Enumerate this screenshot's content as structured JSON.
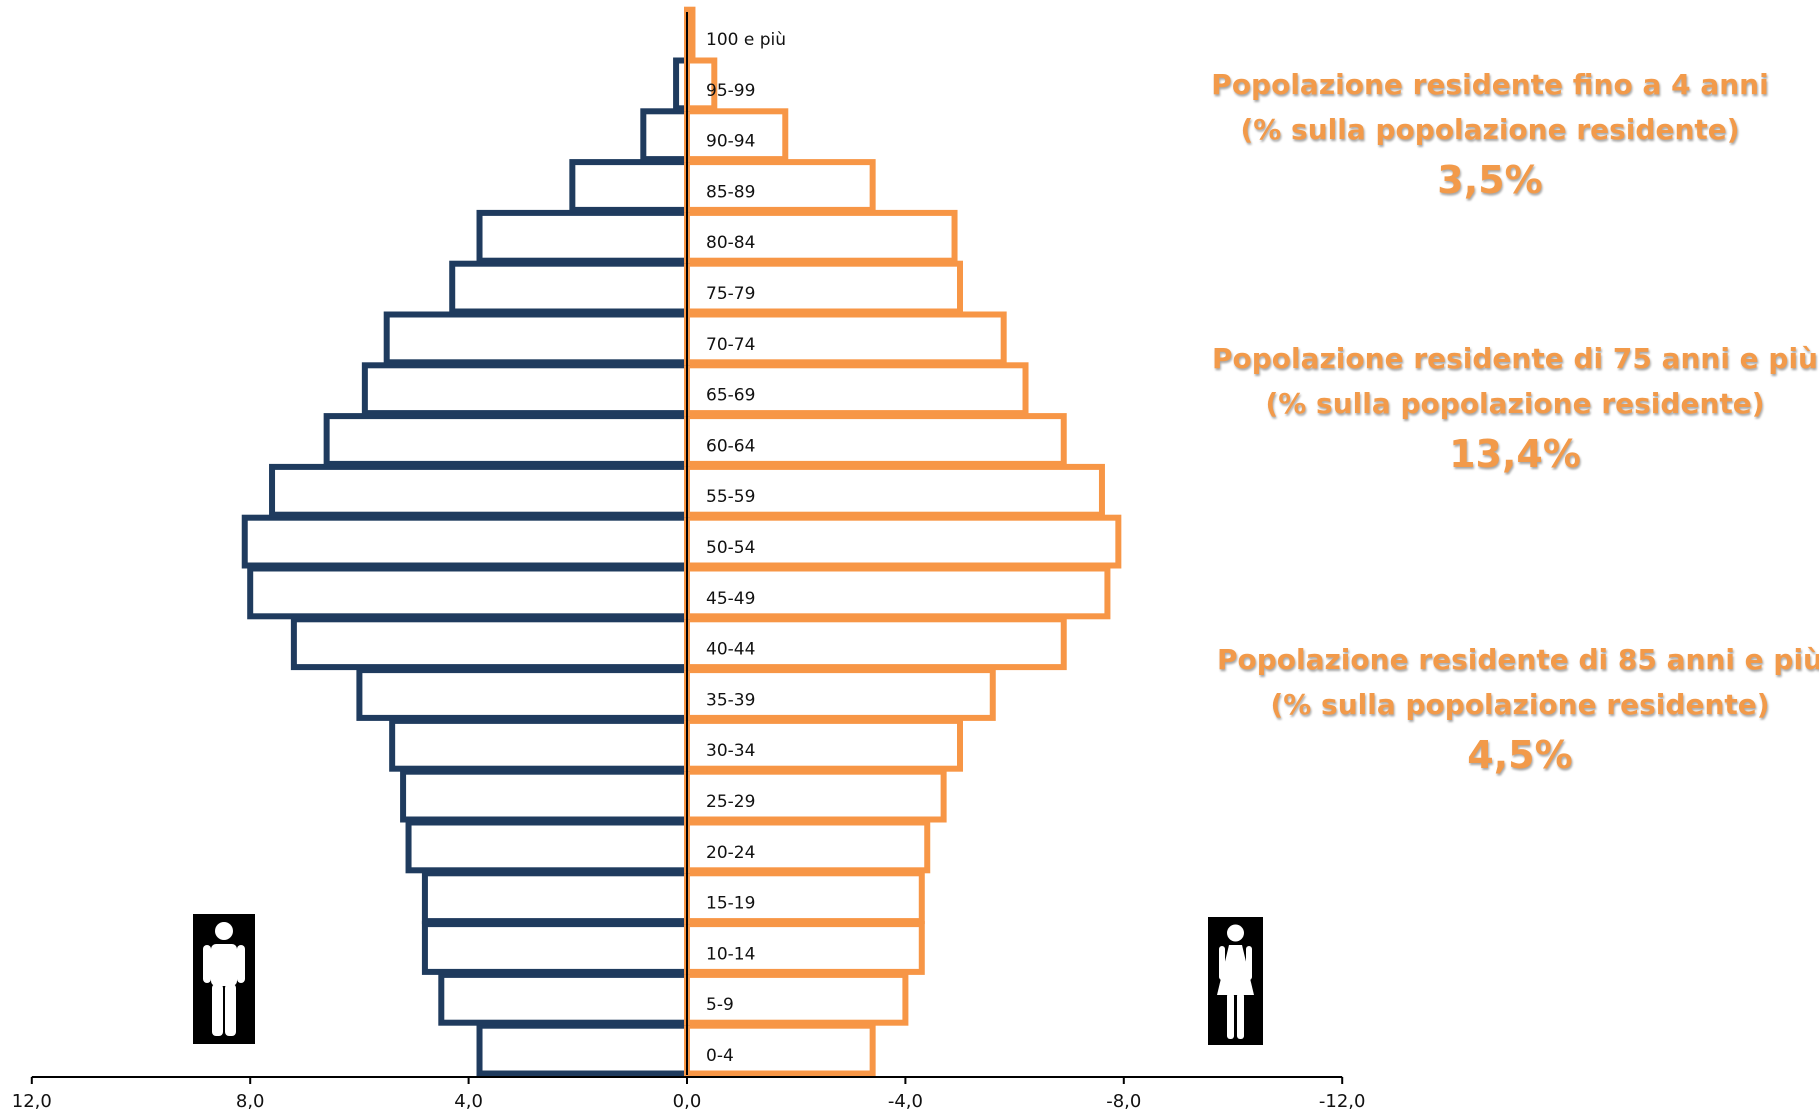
{
  "chart_data": {
    "type": "bar",
    "orientation": "horizontal",
    "categories": [
      "0-4",
      "5-9",
      "10-14",
      "15-19",
      "20-24",
      "25-29",
      "30-34",
      "35-39",
      "40-44",
      "45-49",
      "50-54",
      "55-59",
      "60-64",
      "65-69",
      "70-74",
      "75-79",
      "80-84",
      "85-89",
      "90-94",
      "95-99",
      "100 e più"
    ],
    "series": [
      {
        "values": [
          3.8,
          4.5,
          4.8,
          4.8,
          5.1,
          5.2,
          5.4,
          6.0,
          7.2,
          8.0,
          8.1,
          7.6,
          6.6,
          5.9,
          5.5,
          4.3,
          3.8,
          2.1,
          0.8,
          0.2,
          0.0
        ]
      },
      {
        "values": [
          -3.4,
          -4.0,
          -4.3,
          -4.3,
          -4.4,
          -4.7,
          -5.0,
          -5.6,
          -6.9,
          -7.7,
          -7.9,
          -7.6,
          -6.9,
          -6.2,
          -5.8,
          -5.0,
          -4.9,
          -3.4,
          -1.8,
          -0.5,
          -0.1
        ]
      }
    ],
    "xlim": [
      12,
      -12
    ],
    "xticks": [
      12,
      8,
      4,
      0,
      -4,
      -8,
      -12
    ],
    "xtick_labels": [
      "12,0",
      "8,0",
      "4,0",
      "0,0",
      "-4,0",
      "-8,0",
      "-12,0"
    ],
    "colors": {
      "male": "#1F3B5E",
      "female": "#F79646"
    },
    "grid": false,
    "legend": "none"
  },
  "stats": [
    {
      "line1": "Popolazione residente fino a 4 anni",
      "line2": "(% sulla popolazione residente)",
      "value": "3,5%"
    },
    {
      "line1": "Popolazione residente di 75 anni e più",
      "line2": "(% sulla popolazione residente)",
      "value": "13,4%"
    },
    {
      "line1": "Popolazione residente di 85 anni e più",
      "line2": "(% sulla popolazione residente)",
      "value": "4,5%"
    }
  ],
  "icons": {
    "male": "male-figure-icon",
    "female": "female-figure-icon"
  },
  "accent_color": "#F29A4A"
}
